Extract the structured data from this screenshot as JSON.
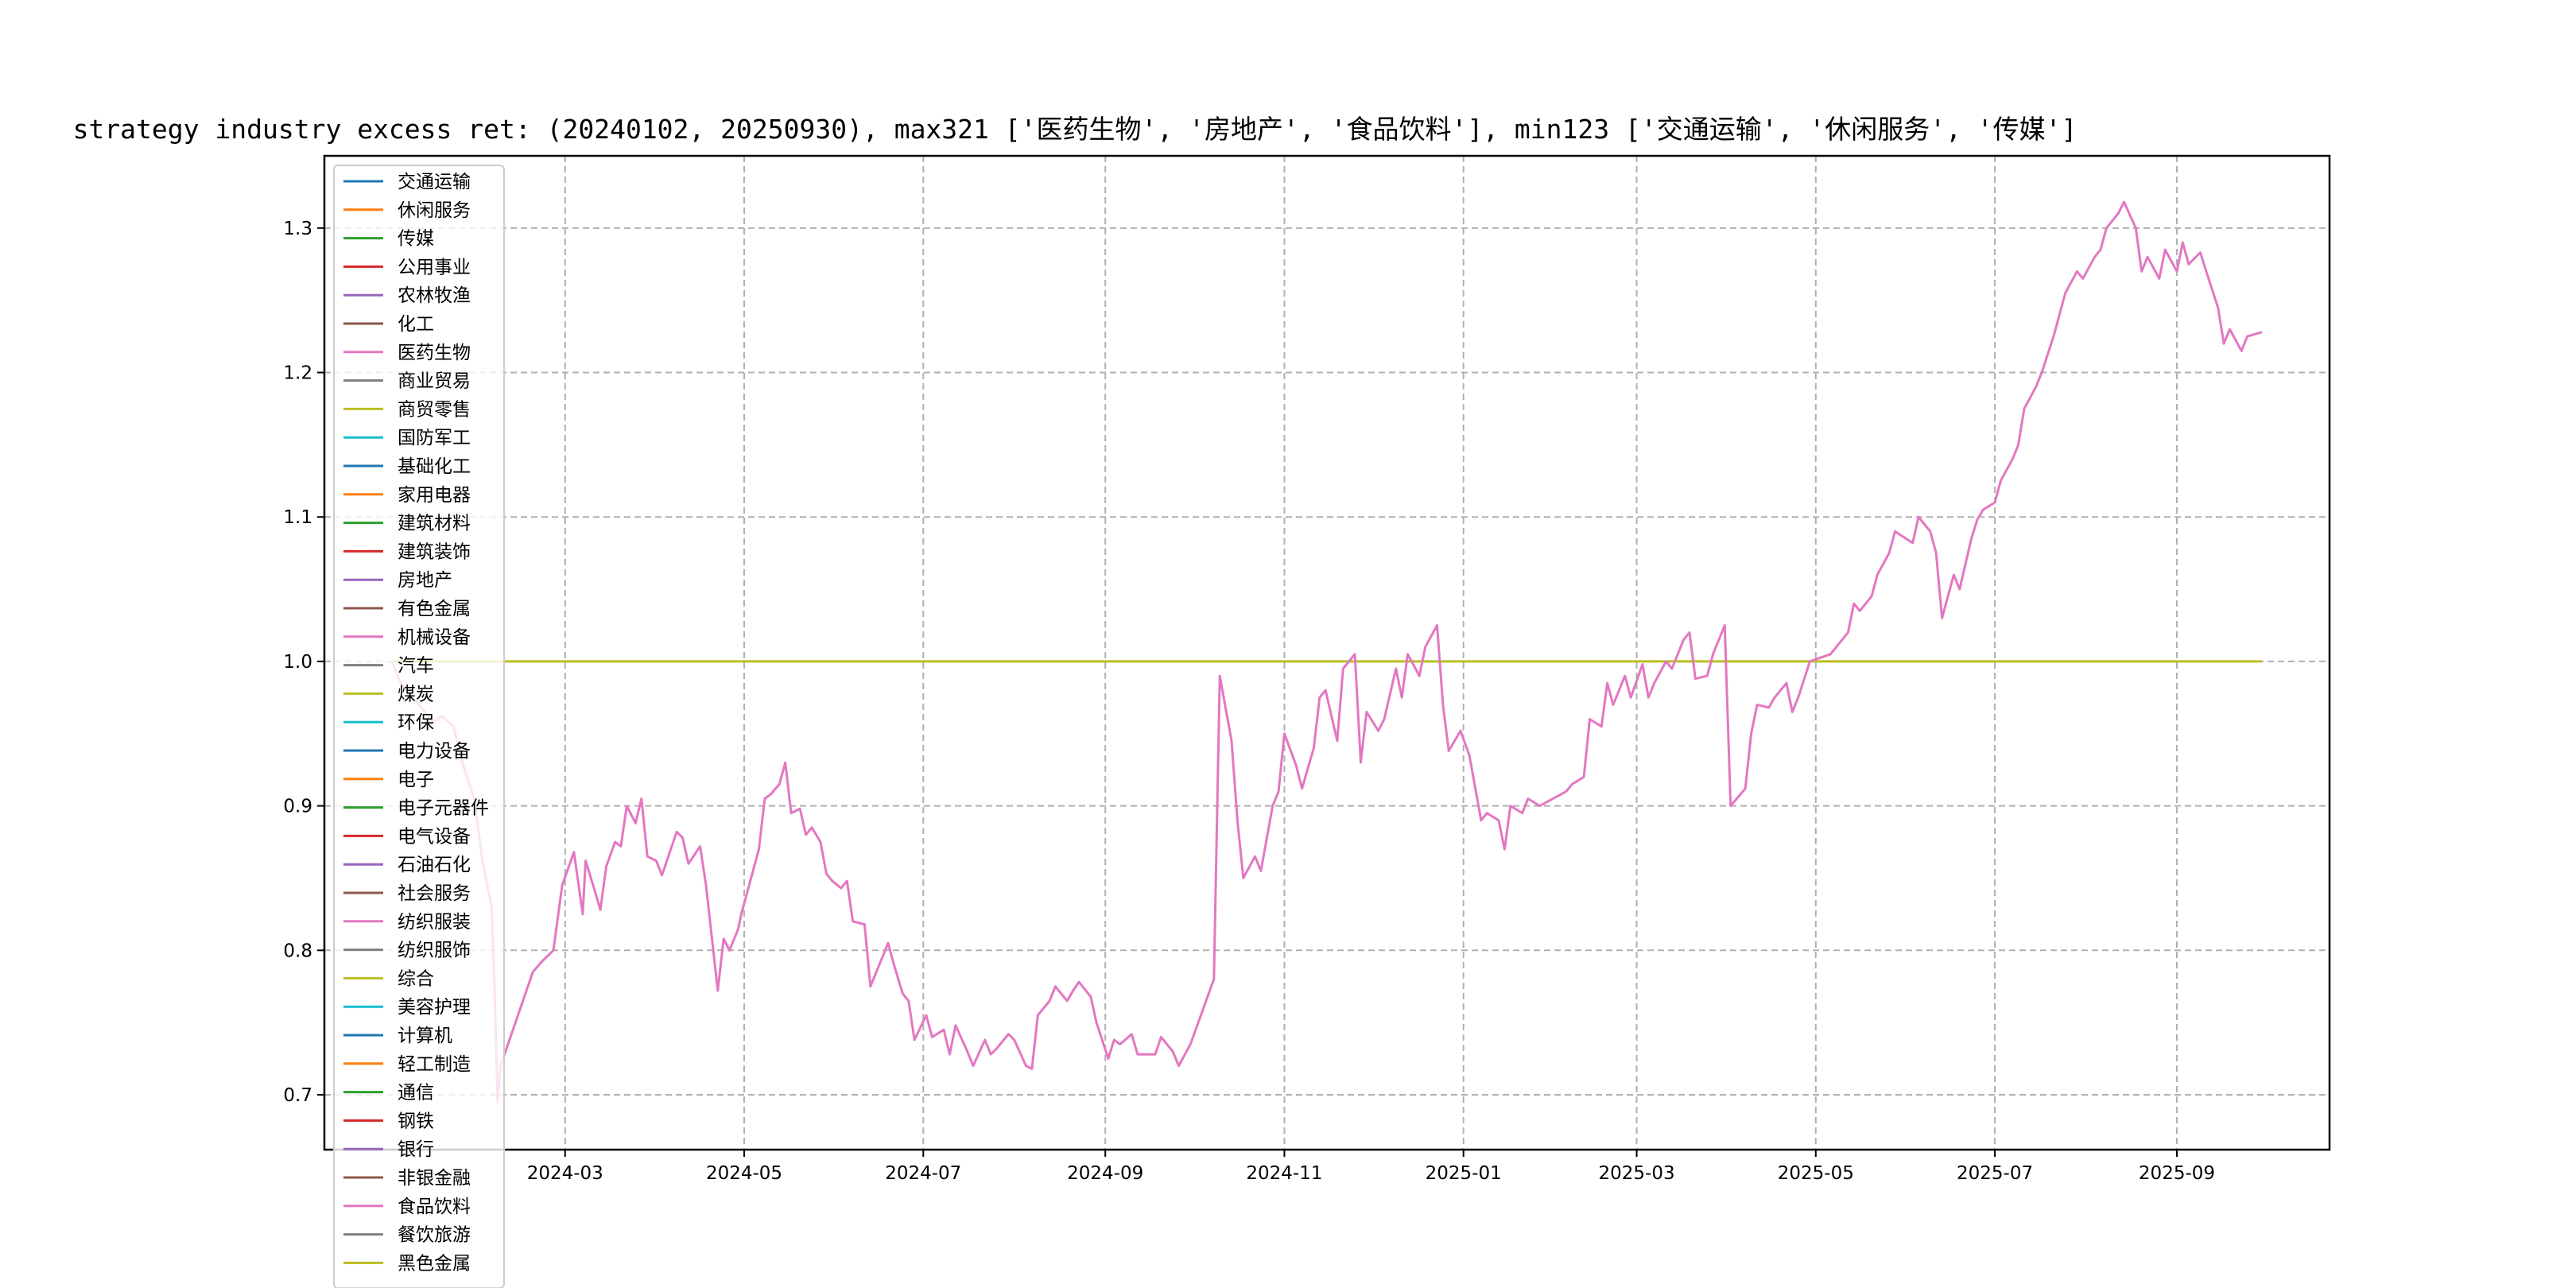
{
  "chart_data": {
    "type": "line",
    "title": "strategy industry excess ret: (20240102, 20250930), max321 ['医药生物', '房地产', '食品饮料'], min123 ['交通运输', '休闲服务', '传媒']",
    "xlabel": "",
    "ylabel": "",
    "x_ticks": [
      "2024-03",
      "2024-05",
      "2024-07",
      "2024-09",
      "2024-11",
      "2025-01",
      "2025-03",
      "2025-05",
      "2025-07",
      "2025-09"
    ],
    "x_tick_dates": [
      "2024-03-01",
      "2024-05-01",
      "2024-07-01",
      "2024-09-01",
      "2024-11-01",
      "2025-01-01",
      "2025-03-01",
      "2025-05-01",
      "2025-07-01",
      "2025-09-01"
    ],
    "xlim": [
      "2023-12-10",
      "2025-10-23"
    ],
    "y_ticks": [
      0.7,
      0.8,
      0.9,
      1.0,
      1.1,
      1.2,
      1.3
    ],
    "ylim": [
      0.662,
      1.35
    ],
    "grid": true,
    "legend_position": "left",
    "legend": [
      "交通运输",
      "休闲服务",
      "传媒",
      "公用事业",
      "农林牧渔",
      "化工",
      "医药生物",
      "商业贸易",
      "商贸零售",
      "国防军工",
      "基础化工",
      "家用电器",
      "建筑材料",
      "建筑装饰",
      "房地产",
      "有色金属",
      "机械设备",
      "汽车",
      "煤炭",
      "环保",
      "电力设备",
      "电子",
      "电子元器件",
      "电气设备",
      "石油石化",
      "社会服务",
      "纺织服装",
      "纺织服饰",
      "综合",
      "美容护理",
      "计算机",
      "轻工制造",
      "通信",
      "钢铁",
      "银行",
      "非银金融",
      "食品饮料",
      "餐饮旅游",
      "黑色金属"
    ],
    "legend_colors": [
      "#1f77b4",
      "#ff7f0e",
      "#2ca02c",
      "#d62728",
      "#9467bd",
      "#8c564b",
      "#e377c2",
      "#7f7f7f",
      "#bcbd22",
      "#17becf",
      "#1f77b4",
      "#ff7f0e",
      "#2ca02c",
      "#d62728",
      "#9467bd",
      "#8c564b",
      "#e377c2",
      "#7f7f7f",
      "#bcbd22",
      "#17becf",
      "#1f77b4",
      "#ff7f0e",
      "#2ca02c",
      "#d62728",
      "#9467bd",
      "#8c564b",
      "#e377c2",
      "#7f7f7f",
      "#bcbd22",
      "#17becf",
      "#1f77b4",
      "#ff7f0e",
      "#2ca02c",
      "#d62728",
      "#9467bd",
      "#8c564b",
      "#e377c2",
      "#7f7f7f",
      "#bcbd22"
    ],
    "series": [
      {
        "color": "#bcbd22",
        "x": [
          "2024-01-02",
          "2025-09-30"
        ],
        "y": [
          1.0,
          1.0
        ]
      },
      {
        "color": "#e377c2",
        "x": [
          "2024-01-02",
          "2024-01-05",
          "2024-01-09",
          "2024-01-12",
          "2024-01-16",
          "2024-01-19",
          "2024-01-23",
          "2024-01-26",
          "2024-01-30",
          "2024-02-02",
          "2024-02-05",
          "2024-02-06",
          "2024-02-07",
          "2024-02-08",
          "2024-02-19",
          "2024-02-22",
          "2024-02-26",
          "2024-02-29",
          "2024-03-04",
          "2024-03-07",
          "2024-03-08",
          "2024-03-11",
          "2024-03-13",
          "2024-03-15",
          "2024-03-18",
          "2024-03-20",
          "2024-03-22",
          "2024-03-25",
          "2024-03-27",
          "2024-03-29",
          "2024-04-01",
          "2024-04-03",
          "2024-04-08",
          "2024-04-10",
          "2024-04-12",
          "2024-04-16",
          "2024-04-18",
          "2024-04-22",
          "2024-04-24",
          "2024-04-26",
          "2024-04-29",
          "2024-04-30",
          "2024-05-06",
          "2024-05-08",
          "2024-05-10",
          "2024-05-13",
          "2024-05-15",
          "2024-05-17",
          "2024-05-20",
          "2024-05-22",
          "2024-05-24",
          "2024-05-27",
          "2024-05-29",
          "2024-05-31",
          "2024-06-03",
          "2024-06-05",
          "2024-06-07",
          "2024-06-11",
          "2024-06-13",
          "2024-06-17",
          "2024-06-19",
          "2024-06-21",
          "2024-06-24",
          "2024-06-26",
          "2024-06-28",
          "2024-07-02",
          "2024-07-04",
          "2024-07-08",
          "2024-07-10",
          "2024-07-12",
          "2024-07-16",
          "2024-07-18",
          "2024-07-22",
          "2024-07-24",
          "2024-07-26",
          "2024-07-30",
          "2024-08-01",
          "2024-08-05",
          "2024-08-07",
          "2024-08-09",
          "2024-08-13",
          "2024-08-15",
          "2024-08-19",
          "2024-08-21",
          "2024-08-23",
          "2024-08-27",
          "2024-08-29",
          "2024-09-02",
          "2024-09-04",
          "2024-09-06",
          "2024-09-10",
          "2024-09-12",
          "2024-09-18",
          "2024-09-20",
          "2024-09-24",
          "2024-09-26",
          "2024-09-30",
          "2024-10-08",
          "2024-10-10",
          "2024-10-14",
          "2024-10-16",
          "2024-10-18",
          "2024-10-22",
          "2024-10-24",
          "2024-10-28",
          "2024-10-30",
          "2024-11-01",
          "2024-11-05",
          "2024-11-07",
          "2024-11-11",
          "2024-11-13",
          "2024-11-15",
          "2024-11-19",
          "2024-11-21",
          "2024-11-25",
          "2024-11-27",
          "2024-11-29",
          "2024-12-03",
          "2024-12-05",
          "2024-12-09",
          "2024-12-11",
          "2024-12-13",
          "2024-12-17",
          "2024-12-19",
          "2024-12-23",
          "2024-12-25",
          "2024-12-27",
          "2024-12-31",
          "2025-01-03",
          "2025-01-07",
          "2025-01-09",
          "2025-01-13",
          "2025-01-15",
          "2025-01-17",
          "2025-01-21",
          "2025-01-23",
          "2025-01-27",
          "2025-02-05",
          "2025-02-07",
          "2025-02-11",
          "2025-02-13",
          "2025-02-17",
          "2025-02-19",
          "2025-02-21",
          "2025-02-25",
          "2025-02-27",
          "2025-03-03",
          "2025-03-05",
          "2025-03-07",
          "2025-03-11",
          "2025-03-13",
          "2025-03-17",
          "2025-03-19",
          "2025-03-21",
          "2025-03-25",
          "2025-03-27",
          "2025-03-31",
          "2025-04-02",
          "2025-04-07",
          "2025-04-09",
          "2025-04-11",
          "2025-04-15",
          "2025-04-17",
          "2025-04-21",
          "2025-04-23",
          "2025-04-25",
          "2025-04-29",
          "2025-05-06",
          "2025-05-08",
          "2025-05-12",
          "2025-05-14",
          "2025-05-16",
          "2025-05-20",
          "2025-05-22",
          "2025-05-26",
          "2025-05-28",
          "2025-06-03",
          "2025-06-05",
          "2025-06-09",
          "2025-06-11",
          "2025-06-13",
          "2025-06-17",
          "2025-06-19",
          "2025-06-23",
          "2025-06-25",
          "2025-06-27",
          "2025-07-01",
          "2025-07-03",
          "2025-07-07",
          "2025-07-09",
          "2025-07-11",
          "2025-07-15",
          "2025-07-17",
          "2025-07-21",
          "2025-07-23",
          "2025-07-25",
          "2025-07-29",
          "2025-07-31",
          "2025-08-04",
          "2025-08-06",
          "2025-08-08",
          "2025-08-12",
          "2025-08-14",
          "2025-08-18",
          "2025-08-20",
          "2025-08-22",
          "2025-08-26",
          "2025-08-28",
          "2025-09-01",
          "2025-09-03",
          "2025-09-05",
          "2025-09-09",
          "2025-09-11",
          "2025-09-15",
          "2025-09-17",
          "2025-09-19",
          "2025-09-23",
          "2025-09-25",
          "2025-09-30"
        ],
        "y": [
          1.0,
          0.985,
          0.975,
          0.968,
          0.958,
          0.962,
          0.955,
          0.93,
          0.905,
          0.86,
          0.83,
          0.77,
          0.695,
          0.72,
          0.785,
          0.792,
          0.8,
          0.845,
          0.868,
          0.825,
          0.862,
          0.842,
          0.828,
          0.858,
          0.875,
          0.872,
          0.9,
          0.888,
          0.905,
          0.865,
          0.862,
          0.852,
          0.882,
          0.878,
          0.86,
          0.872,
          0.845,
          0.772,
          0.808,
          0.8,
          0.815,
          0.825,
          0.87,
          0.905,
          0.908,
          0.915,
          0.93,
          0.895,
          0.898,
          0.88,
          0.885,
          0.875,
          0.853,
          0.848,
          0.843,
          0.848,
          0.82,
          0.818,
          0.775,
          0.795,
          0.805,
          0.79,
          0.77,
          0.765,
          0.738,
          0.755,
          0.74,
          0.745,
          0.728,
          0.748,
          0.73,
          0.72,
          0.738,
          0.728,
          0.732,
          0.742,
          0.738,
          0.72,
          0.718,
          0.755,
          0.765,
          0.775,
          0.765,
          0.772,
          0.778,
          0.768,
          0.75,
          0.725,
          0.738,
          0.735,
          0.742,
          0.728,
          0.728,
          0.74,
          0.73,
          0.72,
          0.735,
          0.78,
          0.99,
          0.945,
          0.89,
          0.85,
          0.865,
          0.855,
          0.9,
          0.91,
          0.95,
          0.928,
          0.912,
          0.94,
          0.975,
          0.98,
          0.945,
          0.995,
          1.005,
          0.93,
          0.965,
          0.952,
          0.96,
          0.995,
          0.975,
          1.005,
          0.99,
          1.01,
          1.025,
          0.97,
          0.938,
          0.952,
          0.935,
          0.89,
          0.895,
          0.89,
          0.87,
          0.9,
          0.895,
          0.905,
          0.9,
          0.91,
          0.915,
          0.92,
          0.96,
          0.955,
          0.985,
          0.97,
          0.99,
          0.975,
          0.998,
          0.975,
          0.985,
          1.0,
          0.995,
          1.015,
          1.02,
          0.988,
          0.99,
          1.005,
          1.025,
          0.9,
          0.912,
          0.95,
          0.97,
          0.968,
          0.975,
          0.985,
          0.965,
          0.975,
          1.0,
          1.005,
          1.01,
          1.02,
          1.04,
          1.035,
          1.045,
          1.06,
          1.075,
          1.09,
          1.082,
          1.1,
          1.09,
          1.075,
          1.03,
          1.06,
          1.05,
          1.085,
          1.098,
          1.105,
          1.11,
          1.125,
          1.14,
          1.15,
          1.175,
          1.19,
          1.2,
          1.225,
          1.24,
          1.255,
          1.27,
          1.265,
          1.28,
          1.285,
          1.3,
          1.31,
          1.318,
          1.3,
          1.27,
          1.28,
          1.265,
          1.285,
          1.27,
          1.29,
          1.275,
          1.283,
          1.27,
          1.245,
          1.22,
          1.23,
          1.215,
          1.225,
          1.228
        ]
      }
    ]
  }
}
